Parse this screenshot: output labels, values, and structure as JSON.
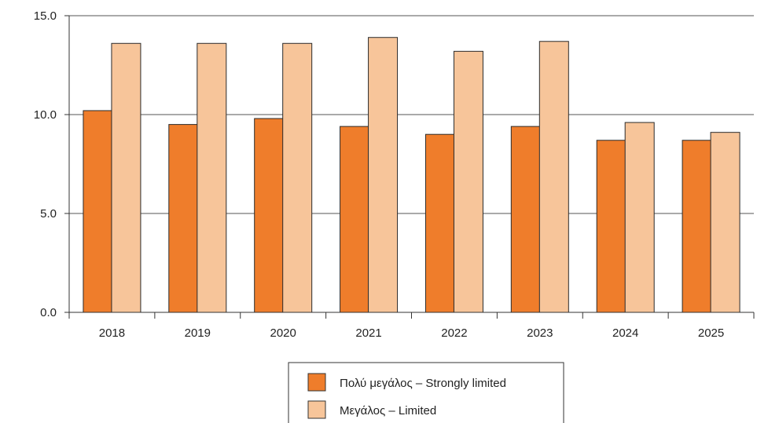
{
  "chart_data": {
    "type": "bar",
    "title": "",
    "xlabel": "",
    "ylabel": "",
    "ylim": [
      0,
      15
    ],
    "yticks": [
      "0.0",
      "5.0",
      "10.0",
      "15.0"
    ],
    "yticks_values": [
      0,
      5,
      10,
      15
    ],
    "grid": true,
    "legend_position": "bottom-center",
    "categories": [
      "2018",
      "2019",
      "2020",
      "2021",
      "2022",
      "2023",
      "2024",
      "2025"
    ],
    "series": [
      {
        "name": "Πολύ μεγάλος – Strongly limited",
        "color": "#EF7D2B",
        "values": [
          10.2,
          9.5,
          9.8,
          9.4,
          9.0,
          9.4,
          8.7,
          8.7
        ]
      },
      {
        "name": "Μεγάλος – Limited",
        "color": "#F7C59A",
        "values": [
          13.6,
          13.6,
          13.6,
          13.9,
          13.2,
          13.7,
          9.6,
          9.1
        ]
      }
    ]
  }
}
